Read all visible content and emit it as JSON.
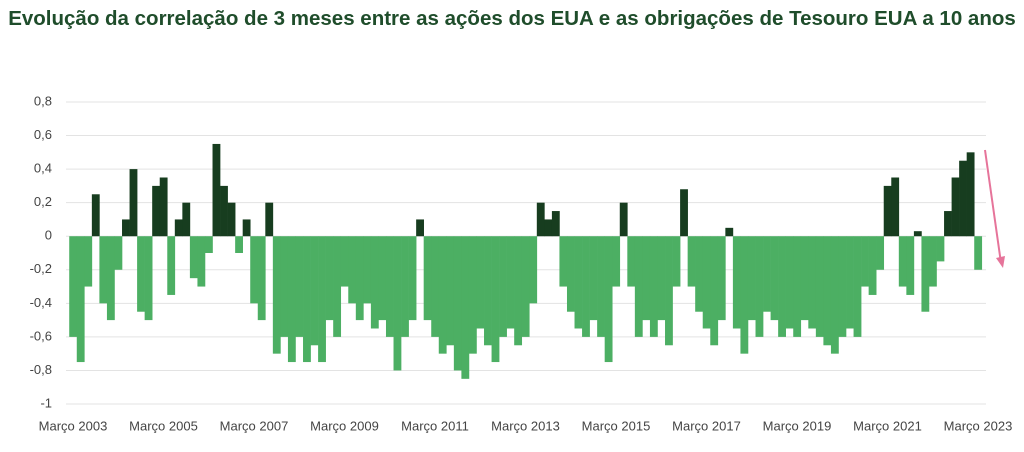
{
  "chart_data": {
    "type": "bar",
    "title": "Evolução da correlação de 3 meses entre as ações dos EUA e as obrigações de Tesouro EUA a 10 anos",
    "categories": [
      "Março 2003",
      null,
      null,
      null,
      null,
      null,
      null,
      null,
      null,
      null,
      null,
      null,
      "Março 2005",
      null,
      null,
      null,
      null,
      null,
      null,
      null,
      null,
      null,
      null,
      null,
      "Março 2007",
      null,
      null,
      null,
      null,
      null,
      null,
      null,
      null,
      null,
      null,
      null,
      "Março 2009",
      null,
      null,
      null,
      null,
      null,
      null,
      null,
      null,
      null,
      null,
      null,
      "Março 2011",
      null,
      null,
      null,
      null,
      null,
      null,
      null,
      null,
      null,
      null,
      null,
      "Março 2013",
      null,
      null,
      null,
      null,
      null,
      null,
      null,
      null,
      null,
      null,
      null,
      "Março 2015",
      null,
      null,
      null,
      null,
      null,
      null,
      null,
      null,
      null,
      null,
      null,
      "Março 2017",
      null,
      null,
      null,
      null,
      null,
      null,
      null,
      null,
      null,
      null,
      null,
      "Março 2019",
      null,
      null,
      null,
      null,
      null,
      null,
      null,
      null,
      null,
      null,
      null,
      "Março 2021",
      null,
      null,
      null,
      null,
      null,
      null,
      null,
      null,
      null,
      null,
      null,
      "Março 2023"
    ],
    "values": [
      -0.6,
      -0.75,
      -0.3,
      0.25,
      -0.4,
      -0.5,
      -0.2,
      0.1,
      0.4,
      -0.45,
      -0.5,
      0.3,
      0.35,
      -0.35,
      0.1,
      0.2,
      -0.25,
      -0.3,
      -0.1,
      0.55,
      0.3,
      0.2,
      -0.1,
      0.1,
      -0.4,
      -0.5,
      0.2,
      -0.7,
      -0.6,
      -0.75,
      -0.6,
      -0.75,
      -0.65,
      -0.75,
      -0.5,
      -0.6,
      -0.3,
      -0.4,
      -0.5,
      -0.4,
      -0.55,
      -0.5,
      -0.6,
      -0.8,
      -0.6,
      -0.5,
      0.1,
      -0.5,
      -0.6,
      -0.7,
      -0.65,
      -0.8,
      -0.85,
      -0.7,
      -0.55,
      -0.65,
      -0.75,
      -0.6,
      -0.55,
      -0.65,
      -0.6,
      -0.4,
      0.2,
      0.1,
      0.15,
      -0.3,
      -0.45,
      -0.55,
      -0.6,
      -0.5,
      -0.6,
      -0.75,
      -0.3,
      0.2,
      -0.3,
      -0.6,
      -0.5,
      -0.6,
      -0.5,
      -0.65,
      -0.3,
      0.28,
      -0.3,
      -0.45,
      -0.55,
      -0.65,
      -0.5,
      0.05,
      -0.55,
      -0.7,
      -0.5,
      -0.6,
      -0.45,
      -0.5,
      -0.6,
      -0.55,
      -0.6,
      -0.5,
      -0.55,
      -0.6,
      -0.65,
      -0.7,
      -0.6,
      -0.55,
      -0.6,
      -0.3,
      -0.35,
      -0.2,
      0.3,
      0.35,
      -0.3,
      -0.35,
      0.03,
      -0.45,
      -0.3,
      -0.15,
      0.15,
      0.35,
      0.45,
      0.5,
      -0.2
    ],
    "positive_color": "#173d1f",
    "negative_color": "#4caf63",
    "ylim": [
      -1,
      0.8
    ],
    "yticks": [
      {
        "value": 0.8,
        "label": "0,8"
      },
      {
        "value": 0.6,
        "label": "0,6"
      },
      {
        "value": 0.4,
        "label": "0,4"
      },
      {
        "value": 0.2,
        "label": "0,2"
      },
      0,
      {
        "value": -0.2,
        "label": "-0,2"
      },
      {
        "value": -0.4,
        "label": "-0,4"
      },
      {
        "value": -0.6,
        "label": "-0,6"
      },
      {
        "value": -0.8,
        "label": "-0,8"
      },
      -1
    ],
    "grid": true
  }
}
